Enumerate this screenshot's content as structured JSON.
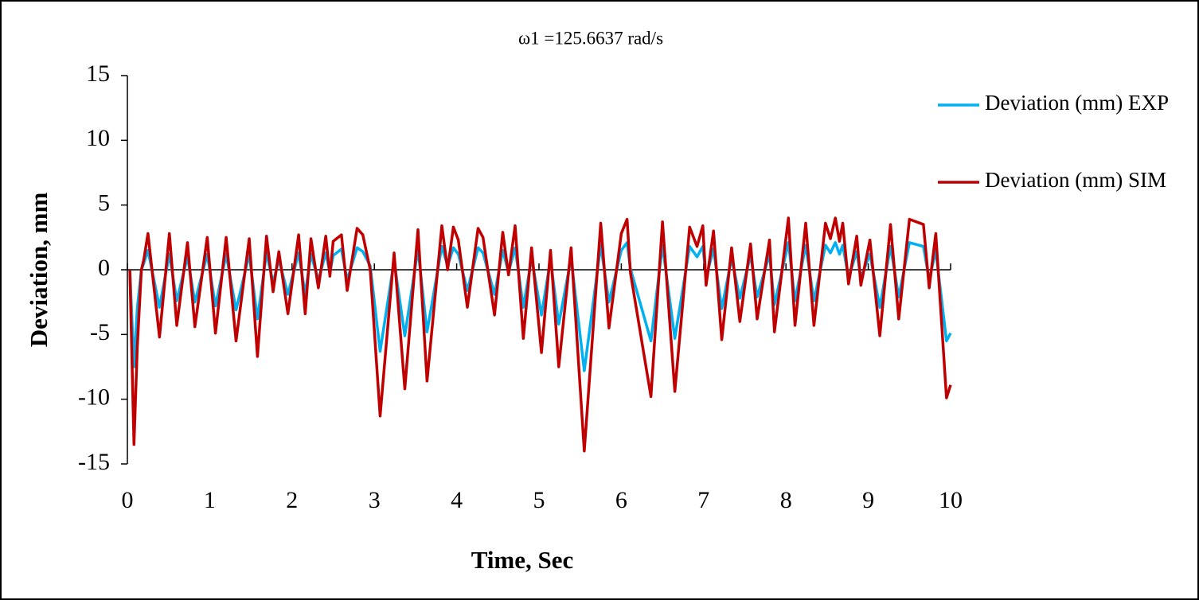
{
  "chart_data": {
    "type": "line",
    "title": "ω1 =125.6637 rad/s",
    "x_label": "Time, Sec",
    "y_label": "Deviation, mm",
    "xlim": [
      0,
      10
    ],
    "xticks": [
      0,
      1,
      2,
      3,
      4,
      5,
      6,
      7,
      8,
      9,
      10
    ],
    "ylim": [
      -15,
      15
    ],
    "yticks": [
      -15,
      -10,
      -5,
      0,
      5,
      10,
      15
    ],
    "legend": "right",
    "x": [
      0.03,
      0.08,
      0.12,
      0.17,
      0.2,
      0.25,
      0.39,
      0.51,
      0.6,
      0.73,
      0.82,
      0.97,
      1.07,
      1.2,
      1.32,
      1.48,
      1.58,
      1.69,
      1.77,
      1.84,
      1.95,
      2.08,
      2.16,
      2.23,
      2.32,
      2.41,
      2.46,
      2.5,
      2.6,
      2.67,
      2.79,
      2.86,
      2.95,
      3.07,
      3.24,
      3.37,
      3.53,
      3.64,
      3.82,
      3.89,
      3.96,
      4.02,
      4.13,
      4.26,
      4.32,
      4.46,
      4.56,
      4.63,
      4.71,
      4.81,
      4.91,
      5.03,
      5.14,
      5.24,
      5.39,
      5.55,
      5.75,
      5.85,
      6.0,
      6.07,
      6.11,
      6.36,
      6.5,
      6.65,
      6.83,
      6.92,
      6.99,
      7.03,
      7.12,
      7.22,
      7.34,
      7.44,
      7.57,
      7.65,
      7.8,
      7.86,
      8.03,
      8.11,
      8.24,
      8.34,
      8.48,
      8.54,
      8.6,
      8.65,
      8.69,
      8.76,
      8.86,
      8.91,
      9.02,
      9.14,
      9.27,
      9.37,
      9.5,
      9.67,
      9.74,
      9.82,
      9.95,
      10
    ],
    "series": [
      {
        "name": "Deviation (mm) EXP",
        "color": "#00b0f0",
        "values": [
          0,
          -7.5,
          -3,
          0,
          0.5,
          1.5,
          -2.9,
          1.2,
          -2.4,
          1.0,
          -2.5,
          1.2,
          -2.8,
          1.2,
          -3.1,
          1.2,
          -3.8,
          1.3,
          -1.0,
          0.8,
          -1.9,
          1.3,
          -1.9,
          1.2,
          -0.8,
          1.3,
          -0.2,
          1.1,
          1.6,
          -0.8,
          1.7,
          1.4,
          0.3,
          -6.3,
          0.7,
          -5.1,
          1.6,
          -4.8,
          1.8,
          0.3,
          1.7,
          1.2,
          -1.6,
          1.7,
          1.3,
          -1.9,
          1.5,
          -0.2,
          1.7,
          -2.9,
          0.9,
          -3.5,
          0.8,
          -4.2,
          0.9,
          -7.8,
          1.9,
          -2.5,
          1.5,
          2.1,
          0.1,
          -5.5,
          1.9,
          -5.3,
          1.8,
          1.0,
          1.8,
          -0.6,
          1.6,
          -3.0,
          0.9,
          -2.2,
          1.1,
          -2.1,
          1.2,
          -2.7,
          2.1,
          -2.4,
          1.9,
          -2.4,
          1.9,
          1.3,
          2.1,
          1.2,
          1.9,
          -0.6,
          1.4,
          -0.6,
          1.2,
          -2.9,
          1.8,
          -2.1,
          2.1,
          1.8,
          -0.8,
          1.5,
          -5.5,
          -4.9
        ]
      },
      {
        "name": "Deviation (mm) SIM",
        "color": "#c00000",
        "values": [
          0,
          -13.5,
          -6,
          0,
          0.8,
          2.8,
          -5.2,
          2.8,
          -4.3,
          2.1,
          -4.4,
          2.5,
          -4.9,
          2.5,
          -5.5,
          2.4,
          -6.7,
          2.6,
          -1.7,
          1.4,
          -3.4,
          2.7,
          -3.4,
          2.4,
          -1.4,
          2.6,
          -0.5,
          2.2,
          2.7,
          -1.6,
          3.2,
          2.7,
          0,
          -11.3,
          1.3,
          -9.2,
          3.1,
          -8.6,
          3.4,
          0,
          3.3,
          2.3,
          -2.9,
          3.2,
          2.5,
          -3.5,
          2.9,
          -0.4,
          3.4,
          -5.3,
          1.7,
          -6.4,
          1.5,
          -7.5,
          1.7,
          -14,
          3.6,
          -4.5,
          2.8,
          3.9,
          -0.2,
          -9.8,
          3.7,
          -9.4,
          3.3,
          1.8,
          3.4,
          -1.2,
          3.0,
          -5.4,
          1.7,
          -4.0,
          2.0,
          -3.8,
          2.3,
          -4.8,
          4.0,
          -4.3,
          3.6,
          -4.3,
          3.6,
          2.4,
          4.0,
          2.2,
          3.6,
          -1.1,
          2.6,
          -1.2,
          2.3,
          -5.1,
          3.5,
          -3.8,
          3.9,
          3.5,
          -1.4,
          2.8,
          -9.9,
          -8.9
        ]
      }
    ]
  }
}
